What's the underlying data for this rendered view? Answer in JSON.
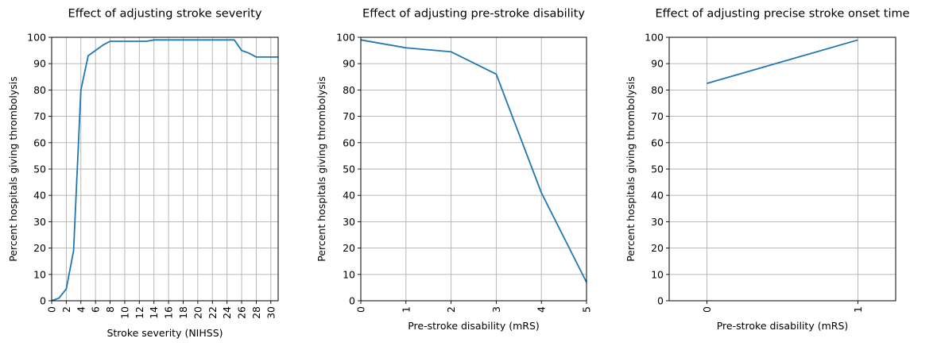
{
  "chart_data": [
    {
      "type": "line",
      "title": "Effect of adjusting stroke severity",
      "xlabel": "Stroke severity (NIHSS)",
      "ylabel": "Percent hospitals giving thrombolysis",
      "xlim": [
        0,
        31
      ],
      "ylim": [
        0,
        100
      ],
      "xticks": [
        0,
        2,
        4,
        6,
        8,
        10,
        12,
        14,
        16,
        18,
        20,
        22,
        24,
        26,
        28,
        30
      ],
      "xtick_rotation": "vertical",
      "yticks": [
        0,
        10,
        20,
        30,
        40,
        50,
        60,
        70,
        80,
        90,
        100
      ],
      "grid": true,
      "series": [
        {
          "color": "#1f77b4",
          "x": [
            0,
            1,
            2,
            3,
            4,
            5,
            6,
            7,
            8,
            9,
            10,
            11,
            12,
            13,
            14,
            15,
            16,
            17,
            18,
            19,
            20,
            21,
            22,
            23,
            24,
            25,
            26,
            27,
            28,
            29,
            30,
            31
          ],
          "y": [
            0,
            1,
            4.5,
            19,
            80,
            93,
            95,
            97,
            98.5,
            98.5,
            98.5,
            98.5,
            98.5,
            98.5,
            99,
            99,
            99,
            99,
            99,
            99,
            99,
            99,
            99,
            99,
            99,
            99,
            95,
            94,
            92.5,
            92.5,
            92.5,
            92.5
          ]
        }
      ]
    },
    {
      "type": "line",
      "title": "Effect of adjusting pre-stroke disability",
      "xlabel": "Pre-stroke disability (mRS)",
      "ylabel": "Percent hospitals giving thrombolysis",
      "xlim": [
        0,
        5
      ],
      "ylim": [
        0,
        100
      ],
      "xticks": [
        0,
        1,
        2,
        3,
        4,
        5
      ],
      "xtick_rotation": "vertical",
      "yticks": [
        0,
        10,
        20,
        30,
        40,
        50,
        60,
        70,
        80,
        90,
        100
      ],
      "grid": true,
      "series": [
        {
          "color": "#1f77b4",
          "x": [
            0,
            1,
            2,
            3,
            4,
            5
          ],
          "y": [
            99,
            96,
            94.5,
            86,
            41,
            7
          ]
        }
      ]
    },
    {
      "type": "line",
      "title": "Effect of adjusting precise stroke onset time",
      "xlabel": "Pre-stroke disability (mRS)",
      "ylabel": "Percent hospitals giving thrombolysis",
      "xlim": [
        -0.25,
        1.25
      ],
      "ylim": [
        0,
        100
      ],
      "xticks": [
        0,
        1
      ],
      "xtick_rotation": "vertical",
      "yticks": [
        0,
        10,
        20,
        30,
        40,
        50,
        60,
        70,
        80,
        90,
        100
      ],
      "grid": true,
      "series": [
        {
          "color": "#1f77b4",
          "x": [
            0,
            1
          ],
          "y": [
            82.5,
            99
          ]
        }
      ]
    }
  ]
}
